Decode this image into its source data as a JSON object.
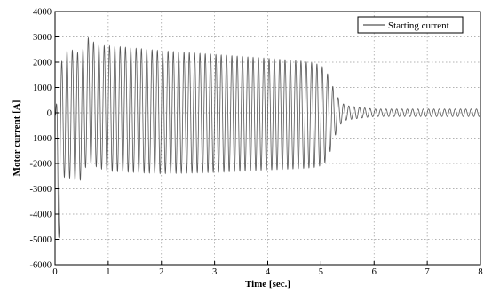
{
  "chart_data": {
    "type": "line",
    "title": "",
    "xlabel": "Time [sec.]",
    "ylabel": "Motor current [A]",
    "xlim": [
      0,
      8
    ],
    "ylim": [
      -6000,
      4000
    ],
    "x_ticks": [
      0,
      1,
      2,
      3,
      4,
      5,
      6,
      7,
      8
    ],
    "y_ticks": [
      -6000,
      -5000,
      -4000,
      -3000,
      -2000,
      -1000,
      0,
      1000,
      2000,
      3000,
      4000
    ],
    "grid": true,
    "grid_style": "dotted",
    "legend_position": "top-right",
    "series": [
      {
        "name": "Starting current",
        "color": "#555555",
        "frequency_hz": 10,
        "envelope_upper": {
          "t": [
            0,
            0.03,
            0.08,
            0.14,
            0.2,
            0.3,
            0.45,
            0.55,
            0.62,
            0.66,
            0.72,
            0.85,
            1.0,
            1.5,
            2.0,
            3.0,
            4.0,
            4.6,
            4.9,
            5.05,
            5.15,
            5.25,
            5.35,
            5.45,
            5.6,
            5.8,
            6.0,
            6.5,
            7.0,
            8.0
          ],
          "v": [
            0,
            400,
            1500,
            2200,
            2450,
            2500,
            2350,
            2600,
            2950,
            3050,
            2800,
            2650,
            2650,
            2550,
            2450,
            2300,
            2150,
            2050,
            1950,
            1800,
            1450,
            900,
            500,
            300,
            250,
            200,
            150,
            150,
            150,
            150
          ]
        },
        "envelope_lower": {
          "t": [
            0,
            0.03,
            0.06,
            0.1,
            0.14,
            0.2,
            0.3,
            0.45,
            0.55,
            0.6,
            0.7,
            0.85,
            1.0,
            1.5,
            2.0,
            3.0,
            4.0,
            4.6,
            4.9,
            5.05,
            5.15,
            5.25,
            5.35,
            5.45,
            5.6,
            5.8,
            6.0,
            6.5,
            7.0,
            8.0
          ],
          "v": [
            0,
            -2500,
            -5600,
            -3500,
            -2600,
            -2500,
            -2600,
            -2750,
            -2400,
            -1900,
            -2050,
            -2200,
            -2300,
            -2350,
            -2400,
            -2350,
            -2250,
            -2200,
            -2150,
            -2050,
            -1700,
            -1000,
            -500,
            -300,
            -250,
            -200,
            -150,
            -150,
            -150,
            -150
          ]
        }
      }
    ]
  }
}
